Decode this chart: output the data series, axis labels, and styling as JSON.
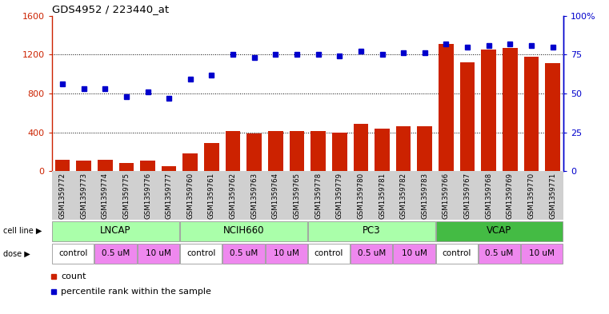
{
  "title": "GDS4952 / 223440_at",
  "samples": [
    "GSM1359772",
    "GSM1359773",
    "GSM1359774",
    "GSM1359775",
    "GSM1359776",
    "GSM1359777",
    "GSM1359760",
    "GSM1359761",
    "GSM1359762",
    "GSM1359763",
    "GSM1359764",
    "GSM1359765",
    "GSM1359778",
    "GSM1359779",
    "GSM1359780",
    "GSM1359781",
    "GSM1359782",
    "GSM1359783",
    "GSM1359766",
    "GSM1359767",
    "GSM1359768",
    "GSM1359769",
    "GSM1359770",
    "GSM1359771"
  ],
  "counts": [
    115,
    110,
    120,
    80,
    110,
    50,
    180,
    290,
    415,
    390,
    415,
    415,
    415,
    400,
    490,
    440,
    460,
    460,
    1310,
    1120,
    1250,
    1270,
    1180,
    1110
  ],
  "percentile": [
    56,
    53,
    53,
    48,
    51,
    47,
    59,
    62,
    75,
    73,
    75,
    75,
    75,
    74,
    77,
    75,
    76,
    76,
    82,
    80,
    81,
    82,
    81,
    80
  ],
  "bar_color": "#cc2200",
  "dot_color": "#0000cc",
  "ylim_left": [
    0,
    1600
  ],
  "ylim_right": [
    0,
    100
  ],
  "yticks_left": [
    0,
    400,
    800,
    1200,
    1600
  ],
  "ytick_labels_left": [
    "0",
    "400",
    "800",
    "1200",
    "1600"
  ],
  "yticks_right": [
    0,
    25,
    50,
    75,
    100
  ],
  "ytick_labels_right": [
    "0",
    "25",
    "50",
    "75",
    "100%"
  ],
  "grid_lines": [
    400,
    800,
    1200
  ],
  "cell_lines": [
    {
      "name": "LNCAP",
      "start": 0,
      "end": 5,
      "color": "#aaffaa"
    },
    {
      "name": "NCIH660",
      "start": 6,
      "end": 11,
      "color": "#aaffaa"
    },
    {
      "name": "PC3",
      "start": 12,
      "end": 17,
      "color": "#aaffaa"
    },
    {
      "name": "VCAP",
      "start": 18,
      "end": 23,
      "color": "#44bb44"
    }
  ],
  "doses": [
    {
      "name": "control",
      "start": 0,
      "end": 1,
      "color": "#ffffff"
    },
    {
      "name": "0.5 uM",
      "start": 2,
      "end": 3,
      "color": "#ee88ee"
    },
    {
      "name": "10 uM",
      "start": 4,
      "end": 5,
      "color": "#ee88ee"
    },
    {
      "name": "control",
      "start": 6,
      "end": 7,
      "color": "#ffffff"
    },
    {
      "name": "0.5 uM",
      "start": 8,
      "end": 9,
      "color": "#ee88ee"
    },
    {
      "name": "10 uM",
      "start": 10,
      "end": 11,
      "color": "#ee88ee"
    },
    {
      "name": "control",
      "start": 12,
      "end": 13,
      "color": "#ffffff"
    },
    {
      "name": "0.5 uM",
      "start": 14,
      "end": 15,
      "color": "#ee88ee"
    },
    {
      "name": "10 uM",
      "start": 16,
      "end": 17,
      "color": "#ee88ee"
    },
    {
      "name": "control",
      "start": 18,
      "end": 19,
      "color": "#ffffff"
    },
    {
      "name": "0.5 uM",
      "start": 20,
      "end": 21,
      "color": "#ee88ee"
    },
    {
      "name": "10 uM",
      "start": 22,
      "end": 23,
      "color": "#ee88ee"
    }
  ],
  "label_bg": "#d0d0d0",
  "fig_width": 7.61,
  "fig_height": 3.93,
  "dpi": 100
}
